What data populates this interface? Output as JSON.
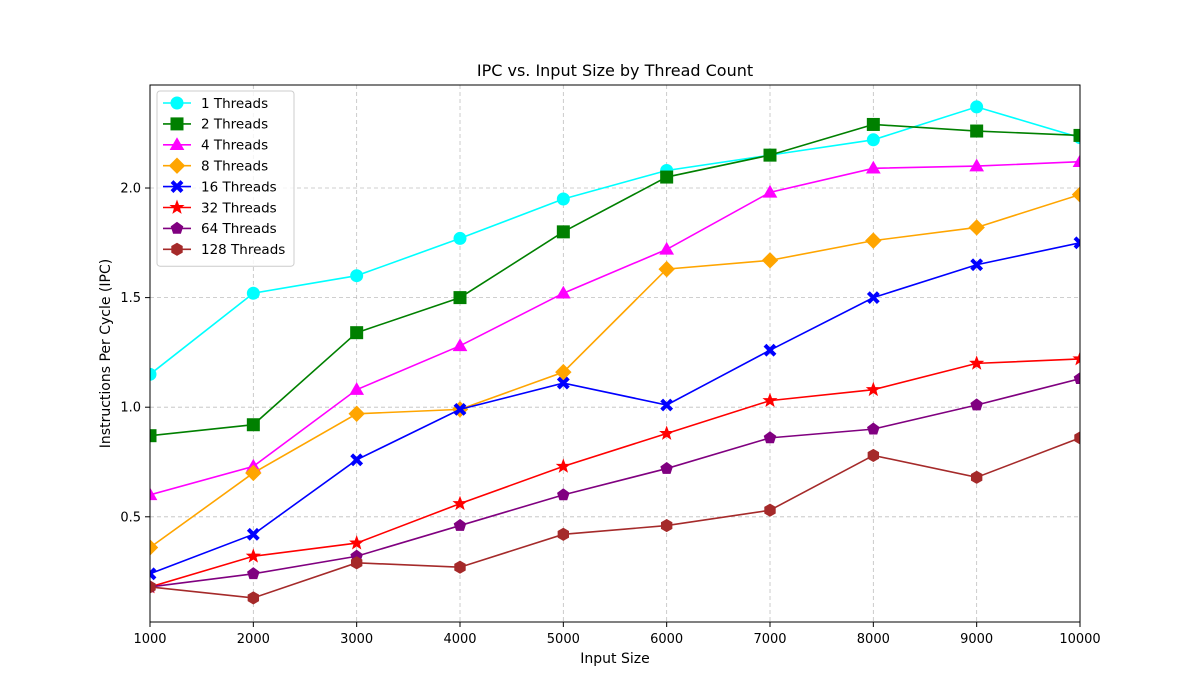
{
  "chart_data": {
    "type": "line",
    "title": "IPC vs. Input Size by Thread Count",
    "xlabel": "Input Size",
    "ylabel": "Instructions Per Cycle (IPC)",
    "xlim": [
      1000,
      10000
    ],
    "ylim": [
      0.02,
      2.47
    ],
    "x_ticks": [
      1000,
      2000,
      3000,
      4000,
      5000,
      6000,
      7000,
      8000,
      9000,
      10000
    ],
    "y_ticks": [
      0.5,
      1.0,
      1.5,
      2.0
    ],
    "y_tick_labels": [
      "0.5",
      "1.0",
      "1.5",
      "2.0"
    ],
    "grid": true,
    "legend_position": "top-left",
    "x": [
      1000,
      2000,
      3000,
      4000,
      5000,
      6000,
      7000,
      8000,
      9000,
      10000
    ],
    "series": [
      {
        "name": "1 Threads",
        "color": "#00ffff",
        "marker": "circle",
        "values": [
          1.15,
          1.52,
          1.6,
          1.77,
          1.95,
          2.08,
          2.15,
          2.22,
          2.37,
          2.23
        ]
      },
      {
        "name": "2 Threads",
        "color": "#008000",
        "marker": "square",
        "values": [
          0.87,
          0.92,
          1.34,
          1.5,
          1.8,
          2.05,
          2.15,
          2.29,
          2.26,
          2.24
        ]
      },
      {
        "name": "4 Threads",
        "color": "#ff00ff",
        "marker": "triangle",
        "values": [
          0.6,
          0.73,
          1.08,
          1.28,
          1.52,
          1.72,
          1.98,
          2.09,
          2.1,
          2.12
        ]
      },
      {
        "name": "8 Threads",
        "color": "#ffa500",
        "marker": "diamond",
        "values": [
          0.36,
          0.7,
          0.97,
          0.99,
          1.16,
          1.63,
          1.67,
          1.76,
          1.82,
          1.97
        ]
      },
      {
        "name": "16 Threads",
        "color": "#0000ff",
        "marker": "x",
        "values": [
          0.24,
          0.42,
          0.76,
          0.99,
          1.11,
          1.01,
          1.26,
          1.5,
          1.65,
          1.75
        ]
      },
      {
        "name": "32 Threads",
        "color": "#ff0000",
        "marker": "star",
        "values": [
          0.18,
          0.32,
          0.38,
          0.56,
          0.73,
          0.88,
          1.03,
          1.08,
          1.2,
          1.22
        ]
      },
      {
        "name": "64 Threads",
        "color": "#800080",
        "marker": "pentagon",
        "values": [
          0.18,
          0.24,
          0.32,
          0.46,
          0.6,
          0.72,
          0.86,
          0.9,
          1.01,
          1.13
        ]
      },
      {
        "name": "128 Threads",
        "color": "#a52a2a",
        "marker": "hexagon",
        "values": [
          0.18,
          0.13,
          0.29,
          0.27,
          0.42,
          0.46,
          0.53,
          0.78,
          0.68,
          0.86
        ]
      }
    ]
  }
}
